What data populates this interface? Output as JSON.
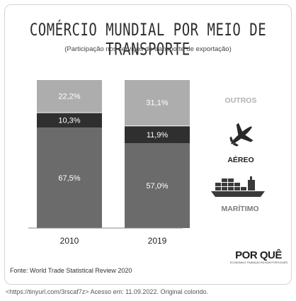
{
  "chart_data": {
    "type": "bar",
    "stacked": true,
    "title": "COMÉRCIO MUNDIAL POR MEIO DE TRANSPORTE",
    "subtitle": "(Participação nos serviços de transporte de exportação)",
    "categories": [
      "2010",
      "2019"
    ],
    "ylim": [
      0,
      100
    ],
    "series": [
      {
        "name": "MARÍTIMO",
        "values": [
          67.5,
          57.0
        ],
        "labels": [
          "67,5%",
          "57,0%"
        ],
        "color": "#6b6b6b"
      },
      {
        "name": "AÉREO",
        "values": [
          10.3,
          11.9
        ],
        "labels": [
          "10,3%",
          "11,9%"
        ],
        "color": "#2f2f2f"
      },
      {
        "name": "OUTROS",
        "values": [
          22.2,
          31.1
        ],
        "labels": [
          "22,2%",
          "31,1%"
        ],
        "color": "#adadad"
      }
    ],
    "legend_placement": "right",
    "legend_icons": [
      "none",
      "airplane-icon",
      "ship-icon"
    ],
    "grid": false
  },
  "source": "Fonte: World Trade Statistical Review 2020",
  "logo": {
    "main": "POR QUÊ",
    "sub": "ECONOMIA E FINANÇAS EM BOM PORTUGUÊS"
  },
  "caption": "<https://tinyurl.com/3rscaf7z> Acesso em: 11.09.2022. Original colorido."
}
